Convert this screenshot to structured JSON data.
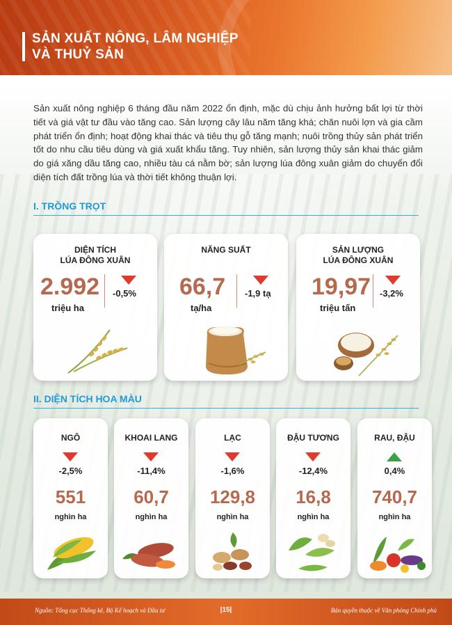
{
  "header": {
    "title_line1": "SẢN XUẤT NÔNG, LÂM NGHIỆP",
    "title_line2": "VÀ THUỶ SẢN"
  },
  "intro": "Sản xuất nông nghiệp 6 tháng đầu năm 2022 ổn định, mặc dù chịu ảnh hưởng bất lợi từ thời tiết và giá vật tư đầu vào tăng cao. Sản lượng cây lâu năm tăng khá; chăn nuôi lợn và gia cầm phát triển ổn định; hoạt động khai thác và tiêu thụ gỗ tăng mạnh; nuôi trồng thủy sản phát triển tốt do nhu cầu tiêu dùng và giá xuất khẩu tăng. Tuy nhiên, sản lượng thủy sản khai thác giảm do giá xăng dầu tăng cao, nhiều tàu cá nằm bờ; sản lượng lúa đông xuân giảm do chuyển đổi diện tích đất trồng lúa và thời tiết không thuận lợi.",
  "section1": {
    "title": "I. TRỒNG TRỌT",
    "cards": [
      {
        "label1": "DIỆN TÍCH",
        "label2": "LÚA ĐÔNG XUÂN",
        "value": "2.992",
        "unit": "triệu ha",
        "change": "-0,5%",
        "trend": "down",
        "icon": "rice-stalk-icon"
      },
      {
        "label1": "NĂNG SUẤT",
        "label2": "",
        "value": "66,7",
        "unit": "tạ/ha",
        "change": "-1,9 tạ",
        "trend": "down",
        "icon": "rice-sack-icon"
      },
      {
        "label1": "SẢN LƯỢNG",
        "label2": "LÚA ĐÔNG XUÂN",
        "value": "19,97",
        "unit": "triệu tấn",
        "change": "-3,2%",
        "trend": "down",
        "icon": "rice-bowl-icon"
      }
    ]
  },
  "section2": {
    "title": "II. DIỆN TÍCH HOA MÀU",
    "cards": [
      {
        "name": "NGÔ",
        "change": "-2,5%",
        "trend": "down",
        "value": "551",
        "unit": "nghìn ha",
        "icon": "corn-icon"
      },
      {
        "name": "KHOAI LANG",
        "change": "-11,4%",
        "trend": "down",
        "value": "60,7",
        "unit": "nghìn ha",
        "icon": "sweet-potato-icon"
      },
      {
        "name": "LẠC",
        "change": "-1,6%",
        "trend": "down",
        "value": "129,8",
        "unit": "nghìn ha",
        "icon": "peanut-icon"
      },
      {
        "name": "ĐẬU TƯƠNG",
        "change": "-12,4%",
        "trend": "down",
        "value": "16,8",
        "unit": "nghìn ha",
        "icon": "soybean-icon"
      },
      {
        "name": "RAU, ĐẬU",
        "change": "0,4%",
        "trend": "up",
        "value": "740,7",
        "unit": "nghìn ha",
        "icon": "vegetables-icon"
      }
    ]
  },
  "footer": {
    "source": "Nguồn: Tổng cục Thống kê, Bộ Kế hoạch và Đầu tư",
    "page": "|15|",
    "copyright": "Bản quyền thuộc về Văn phòng Chính phủ"
  },
  "colors": {
    "accent": "#1e9ad6",
    "value": "#b5694f",
    "down": "#e03a2e",
    "up": "#3aa14a",
    "header": "#d4561e"
  }
}
